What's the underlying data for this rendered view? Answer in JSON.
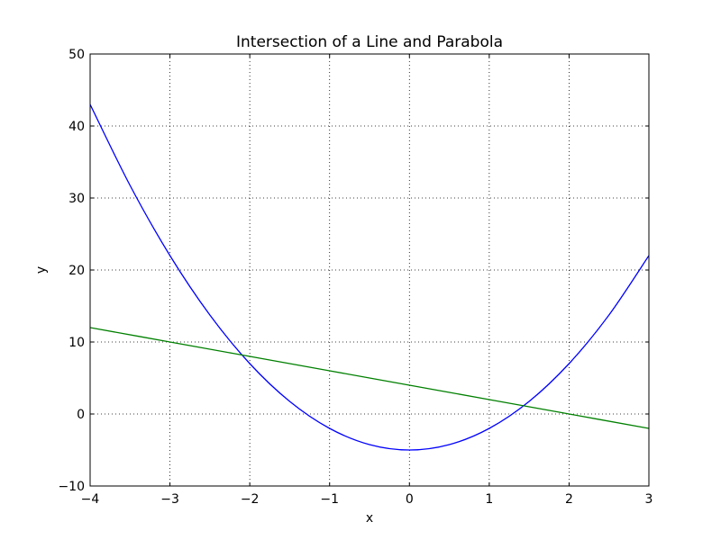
{
  "chart_data": {
    "type": "line",
    "title": "Intersection of a Line and Parabola",
    "xlabel": "x",
    "ylabel": "y",
    "xlim": [
      -4,
      3
    ],
    "ylim": [
      -10,
      50
    ],
    "x_ticks": [
      -4,
      -3,
      -2,
      -1,
      0,
      1,
      2,
      3
    ],
    "x_tick_labels": [
      "−4",
      "−3",
      "−2",
      "−1",
      "0",
      "1",
      "2",
      "3"
    ],
    "y_ticks": [
      -10,
      0,
      10,
      20,
      30,
      40,
      50
    ],
    "y_tick_labels": [
      "−10",
      "0",
      "10",
      "20",
      "30",
      "40",
      "50"
    ],
    "grid": true,
    "series": [
      {
        "color": "#0000ff",
        "x": [
          -4,
          -3.5,
          -3,
          -2.5,
          -2,
          -1.5,
          -1,
          -0.5,
          0,
          0.5,
          1,
          1.5,
          2,
          2.5,
          3
        ],
        "y": [
          43,
          31.75,
          22,
          13.75,
          7,
          1.75,
          -2,
          -4.25,
          -5,
          -4.25,
          -2,
          1.75,
          7,
          13.75,
          22
        ]
      },
      {
        "color": "#008000",
        "x": [
          -4,
          -3,
          -2,
          -1,
          0,
          1,
          2,
          3
        ],
        "y": [
          12,
          10,
          8,
          6,
          4,
          2,
          0,
          -2
        ]
      }
    ]
  }
}
